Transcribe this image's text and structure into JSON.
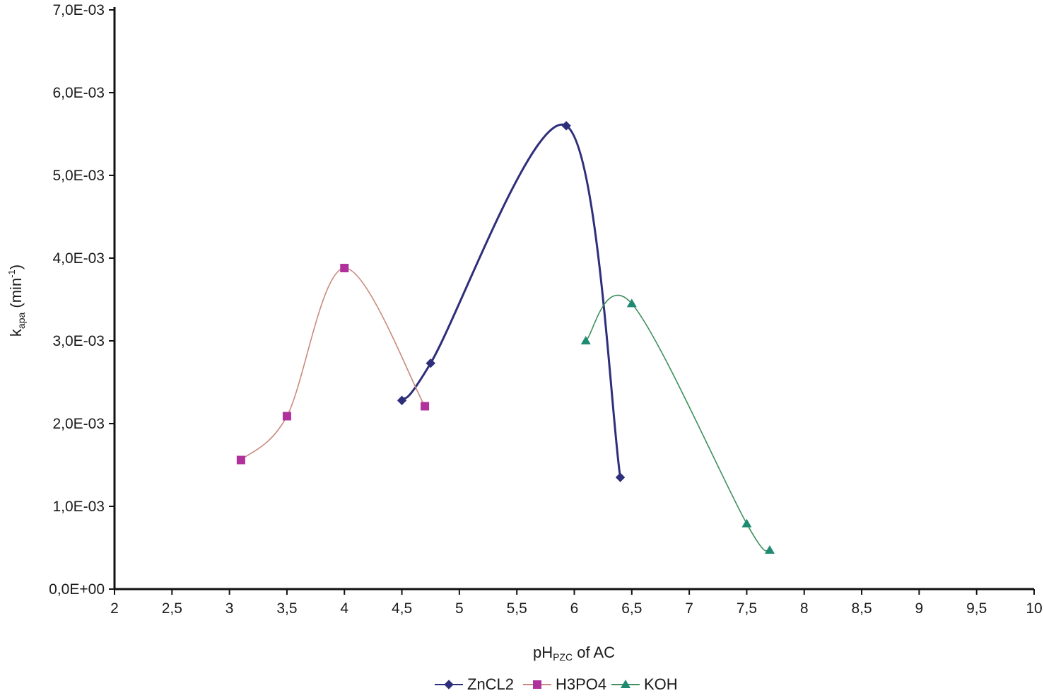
{
  "chart_data": {
    "type": "line",
    "title": "",
    "xlabel": {
      "main": "pH",
      "sub": "PZC",
      "rest": " of AC"
    },
    "ylabel": {
      "main": "k",
      "sub": "apa",
      "rest": " (min",
      "sup": "-1",
      "end": ")"
    },
    "xlim": [
      2,
      10
    ],
    "ylim": [
      0,
      0.007
    ],
    "x_ticks": [
      2,
      2.5,
      3,
      3.5,
      4,
      4.5,
      5,
      5.5,
      6,
      6.5,
      7,
      7.5,
      8,
      8.5,
      9,
      9.5,
      10
    ],
    "x_tick_labels": [
      "2",
      "2,5",
      "3",
      "3,5",
      "4",
      "4,5",
      "5",
      "5,5",
      "6",
      "6,5",
      "7",
      "7,5",
      "8",
      "8,5",
      "9",
      "9,5",
      "10"
    ],
    "y_ticks": [
      0,
      0.001,
      0.002,
      0.003,
      0.004,
      0.005,
      0.006,
      0.007
    ],
    "y_tick_labels": [
      "0,0E+00",
      "1,0E-03",
      "2,0E-03",
      "3,0E-03",
      "4,0E-03",
      "5,0E-03",
      "6,0E-03",
      "7,0E-03"
    ],
    "grid": false,
    "legend_position": "bottom",
    "series": [
      {
        "name": "ZnCL2",
        "marker": "diamond",
        "color": "#2e2f7a",
        "x": [
          4.5,
          4.75,
          5.93,
          6.4
        ],
        "y": [
          0.00228,
          0.00273,
          0.0056,
          0.00135
        ]
      },
      {
        "name": "H3PO4",
        "marker": "square",
        "color": "#b0309c",
        "line_color": "#c98a7e",
        "x": [
          3.1,
          3.5,
          4.0,
          4.7
        ],
        "y": [
          0.00156,
          0.00209,
          0.00388,
          0.00221
        ]
      },
      {
        "name": "KOH",
        "marker": "triangle",
        "color": "#1f8a72",
        "line_color": "#3f8f5c",
        "x": [
          6.1,
          6.5,
          7.5,
          7.7
        ],
        "y": [
          0.003,
          0.00345,
          0.00079,
          0.00047
        ]
      }
    ]
  }
}
